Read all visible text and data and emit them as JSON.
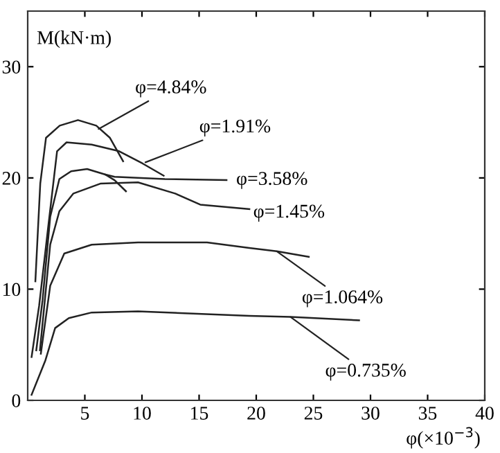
{
  "chart_data": {
    "type": "line",
    "ylabel": "M(kN·m)",
    "xlabel": "φ(×10$^{−3}$)",
    "xlim": [
      0,
      40
    ],
    "ylim": [
      0,
      35
    ],
    "xticks": [
      5,
      10,
      15,
      20,
      25,
      30,
      35,
      40
    ],
    "yticks": [
      0,
      10,
      20,
      30
    ],
    "grid": false,
    "legend": false,
    "marker": "none",
    "line_style": "solid",
    "series": [
      {
        "color": "#222222",
        "x": [
          0.67,
          1.1,
          1.6,
          2.8,
          4.4,
          6.0,
          7.2,
          8.35
        ],
        "values": [
          10.7,
          19.5,
          23.6,
          24.7,
          25.2,
          24.7,
          23.6,
          21.5
        ]
      },
      {
        "color": "#222222",
        "x": [
          0.34,
          1.0,
          1.76,
          2.57,
          3.4,
          5.6,
          8.0,
          10.05,
          11.9
        ],
        "values": [
          3.9,
          8.5,
          15.3,
          22.4,
          23.2,
          23.0,
          22.4,
          21.3,
          20.2
        ]
      },
      {
        "color": "#222222",
        "x": [
          0.75,
          1.3,
          1.97,
          2.77,
          3.8,
          5.2,
          6.8,
          7.6,
          12.0,
          17.4
        ],
        "values": [
          4.5,
          9.0,
          16.5,
          19.9,
          20.6,
          20.8,
          20.3,
          20.1,
          19.9,
          19.8
        ]
      },
      {
        "color": "#222222",
        "x": [
          6.8,
          7.6,
          8.6
        ],
        "values": [
          20.3,
          19.8,
          18.8
        ]
      },
      {
        "color": "#222222",
        "x": [
          1.07,
          1.5,
          1.97,
          2.77,
          4.0,
          6.4,
          9.65,
          12.9,
          15.1,
          19.4
        ],
        "values": [
          4.5,
          9.0,
          14.0,
          17.0,
          18.6,
          19.5,
          19.6,
          18.6,
          17.6,
          17.2
        ]
      },
      {
        "color": "#222222",
        "x": [
          1.15,
          1.97,
          3.2,
          5.6,
          9.65,
          15.7,
          19.4,
          21.8,
          24.6
        ],
        "values": [
          4.2,
          10.3,
          13.2,
          14.0,
          14.2,
          14.2,
          13.7,
          13.4,
          12.9
        ]
      },
      {
        "color": "#222222",
        "x": [
          0.34,
          1.55,
          2.4,
          3.6,
          5.6,
          9.65,
          19.4,
          23.0,
          29.0
        ],
        "values": [
          0.5,
          3.6,
          6.5,
          7.4,
          7.9,
          8.0,
          7.6,
          7.5,
          7.2
        ]
      }
    ],
    "annotations": [
      {
        "text": "φ=4.84%",
        "x": 6.2,
        "y": 24.4
      },
      {
        "text": "φ=1.91%",
        "x": 10.3,
        "y": 21.4
      },
      {
        "text": "φ=3.58%",
        "x": 17.4,
        "y": 19.8
      },
      {
        "text": "φ=1.45%",
        "x": 19.4,
        "y": 17.2
      },
      {
        "text": "φ=1.064%",
        "x": 21.8,
        "y": 13.4
      },
      {
        "text": "φ=0.735%",
        "x": 23.0,
        "y": 7.5
      }
    ]
  }
}
